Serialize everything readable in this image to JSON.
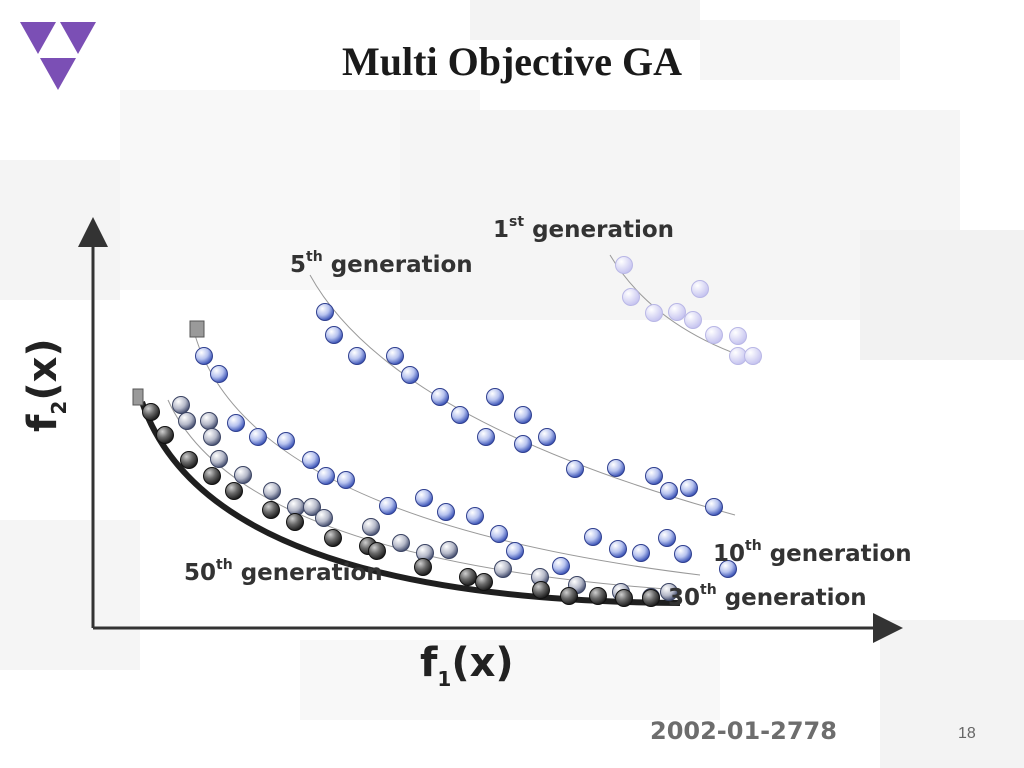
{
  "slide": {
    "title": "Multi Objective GA",
    "doc_id": "2002-01-2778",
    "page_number": "18",
    "logo_icon": "purple-triangles-logo",
    "logo_color": "#7b4fb5"
  },
  "axes": {
    "x": {
      "base": "f",
      "sub": "1",
      "paren": "(x)"
    },
    "y": {
      "base": "f",
      "sub": "2",
      "paren": "(x)"
    }
  },
  "generations": [
    {
      "key": "gen1",
      "num": "1",
      "sup": "st",
      "word": "generation",
      "color": "#c9c8f2"
    },
    {
      "key": "gen5",
      "num": "5",
      "sup": "th",
      "word": "generation",
      "color": "#6f86d8"
    },
    {
      "key": "gen10",
      "num": "10",
      "sup": "th",
      "word": "generation",
      "color": "#5a6fd0"
    },
    {
      "key": "gen30",
      "num": "30",
      "sup": "th",
      "word": "generation",
      "color": "#a9b0c6"
    },
    {
      "key": "gen50",
      "num": "50",
      "sup": "th",
      "word": "generation",
      "color": "#4a4a4a"
    }
  ]
}
